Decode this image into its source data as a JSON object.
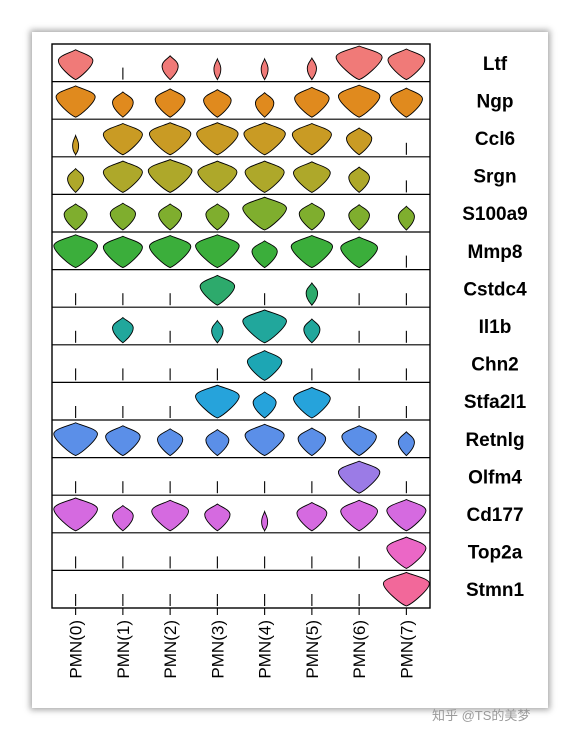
{
  "chart_data": {
    "type": "violin",
    "categories": [
      "PMN(0)",
      "PMN(1)",
      "PMN(2)",
      "PMN(3)",
      "PMN(4)",
      "PMN(5)",
      "PMN(6)",
      "PMN(7)"
    ],
    "genes": [
      {
        "name": "Ltf",
        "color": "#F07A78",
        "values": [
          0.75,
          0.02,
          0.35,
          0.15,
          0.15,
          0.2,
          1.0,
          0.8
        ]
      },
      {
        "name": "Ngp",
        "color": "#E08A1E",
        "values": [
          0.85,
          0.45,
          0.65,
          0.6,
          0.4,
          0.75,
          0.9,
          0.7
        ]
      },
      {
        "name": "Ccl6",
        "color": "#C99B24",
        "values": [
          0.05,
          0.85,
          0.9,
          0.9,
          0.9,
          0.85,
          0.55,
          0.02
        ]
      },
      {
        "name": "Srgn",
        "color": "#AEA82A",
        "values": [
          0.35,
          0.85,
          0.95,
          0.85,
          0.85,
          0.8,
          0.45,
          0.02
        ]
      },
      {
        "name": "S100a9",
        "color": "#7FAE2E",
        "values": [
          0.5,
          0.55,
          0.5,
          0.5,
          0.95,
          0.55,
          0.45,
          0.35
        ]
      },
      {
        "name": "Mmp8",
        "color": "#3BAE3B",
        "values": [
          0.95,
          0.85,
          0.9,
          0.95,
          0.55,
          0.9,
          0.8,
          0.02
        ]
      },
      {
        "name": "Cstdc4",
        "color": "#2DAA6C",
        "values": [
          0.02,
          0.02,
          0.02,
          0.75,
          0.02,
          0.25,
          0.02,
          0.02
        ]
      },
      {
        "name": "Il1b",
        "color": "#21A79C",
        "values": [
          0.02,
          0.45,
          0.02,
          0.25,
          0.95,
          0.35,
          0.02,
          0.02
        ]
      },
      {
        "name": "Chn2",
        "color": "#1DA6B4",
        "values": [
          0.02,
          0.02,
          0.02,
          0.02,
          0.75,
          0.02,
          0.02,
          0.02
        ]
      },
      {
        "name": "Stfa2l1",
        "color": "#26A3DB",
        "values": [
          0.02,
          0.02,
          0.02,
          0.95,
          0.5,
          0.8,
          0.02,
          0.02
        ]
      },
      {
        "name": "Retnlg",
        "color": "#5B8FE8",
        "values": [
          0.95,
          0.75,
          0.55,
          0.5,
          0.85,
          0.6,
          0.75,
          0.35
        ]
      },
      {
        "name": "Olfm4",
        "color": "#9B7BE6",
        "values": [
          0.02,
          0.02,
          0.02,
          0.02,
          0.02,
          0.02,
          0.9,
          0.02
        ]
      },
      {
        "name": "Cd177",
        "color": "#D56AE0",
        "values": [
          0.95,
          0.45,
          0.8,
          0.55,
          0.05,
          0.65,
          0.8,
          0.85
        ]
      },
      {
        "name": "Top2a",
        "color": "#EB67C6",
        "values": [
          0.02,
          0.02,
          0.02,
          0.02,
          0.02,
          0.02,
          0.02,
          0.85
        ]
      },
      {
        "name": "Stmn1",
        "color": "#F2689A",
        "values": [
          0.02,
          0.02,
          0.02,
          0.02,
          0.02,
          0.02,
          0.02,
          1.0
        ]
      }
    ]
  },
  "watermark": "知乎 @TS的美梦"
}
